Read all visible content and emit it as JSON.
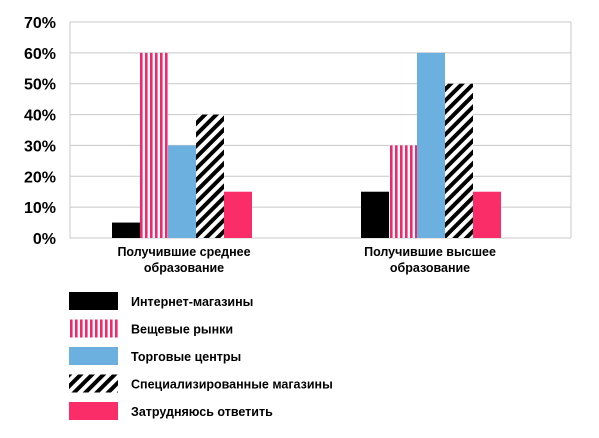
{
  "chart_data": {
    "type": "bar",
    "categories": [
      [
        "Получившие среднее",
        "образование"
      ],
      [
        "Получившие высшее",
        "образование"
      ]
    ],
    "series": [
      {
        "name": "Интернет-магазины",
        "values": [
          5,
          15
        ],
        "color": "#000000",
        "pattern": "solid"
      },
      {
        "name": "Вещевые рынки",
        "values": [
          60,
          30
        ],
        "color": "#f0296a",
        "pattern": "vertical-stripes"
      },
      {
        "name": "Торговые центры",
        "values": [
          30,
          60
        ],
        "color": "#6cb0e0",
        "pattern": "solid"
      },
      {
        "name": "Специализированные магазины",
        "values": [
          40,
          50
        ],
        "color": "#000000",
        "pattern": "diagonal-stripes"
      },
      {
        "name": "Затрудняюсь ответить",
        "values": [
          15,
          15
        ],
        "color": "#fb2d68",
        "pattern": "solid"
      }
    ],
    "y_ticks": [
      "0%",
      "10%",
      "20%",
      "30%",
      "40%",
      "50%",
      "60%",
      "70%"
    ],
    "ylim": [
      0,
      70
    ],
    "grid": true,
    "legend_position": "bottom-left"
  }
}
